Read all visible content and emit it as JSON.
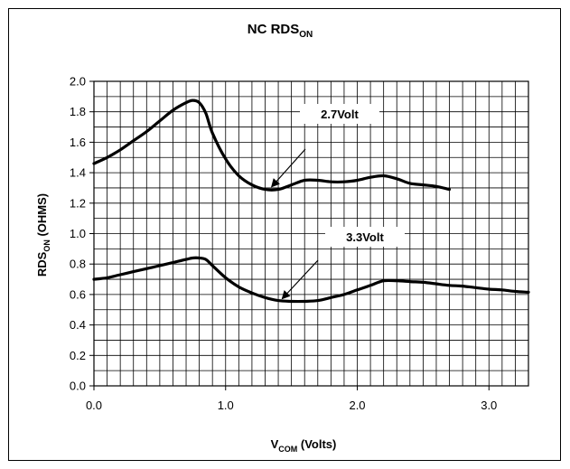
{
  "chart_data": {
    "type": "line",
    "title": {
      "main": "NC RDS",
      "sub": "ON"
    },
    "xlabel": {
      "main": "V",
      "sub": "COM",
      "suffix": " (Volts)"
    },
    "ylabel": {
      "main": "RDS",
      "sub": "ON",
      "suffix": " (OHMS)"
    },
    "xlim": [
      0,
      3.3
    ],
    "ylim": [
      0,
      2.0
    ],
    "x_ticks": [
      0.0,
      1.0,
      2.0,
      3.0
    ],
    "x_tick_labels": [
      "0.0",
      "1.0",
      "2.0",
      "3.0"
    ],
    "y_ticks": [
      0,
      0.2,
      0.4,
      0.6,
      0.8,
      1.0,
      1.2,
      1.4,
      1.6,
      1.8,
      2.0
    ],
    "y_tick_labels": [
      "0.0",
      "0.2",
      "0.4",
      "0.6",
      "0.8",
      "1.0",
      "1.2",
      "1.4",
      "1.6",
      "1.8",
      "2.0"
    ],
    "x_minor_step": 0.1,
    "y_minor_step": 0.1,
    "grid": true,
    "series": [
      {
        "x": [
          0.0,
          0.1,
          0.2,
          0.3,
          0.4,
          0.5,
          0.6,
          0.7,
          0.75,
          0.8,
          0.85,
          0.9,
          1.0,
          1.1,
          1.2,
          1.3,
          1.4,
          1.5,
          1.6,
          1.7,
          1.8,
          1.9,
          2.0,
          2.1,
          2.2,
          2.3,
          2.4,
          2.5,
          2.6,
          2.7
        ],
        "y": [
          1.46,
          1.5,
          1.55,
          1.61,
          1.67,
          1.74,
          1.81,
          1.86,
          1.875,
          1.86,
          1.79,
          1.66,
          1.49,
          1.38,
          1.32,
          1.29,
          1.29,
          1.32,
          1.35,
          1.35,
          1.34,
          1.34,
          1.35,
          1.37,
          1.38,
          1.36,
          1.33,
          1.32,
          1.31,
          1.29
        ],
        "color": "#000000"
      },
      {
        "x": [
          0.0,
          0.1,
          0.2,
          0.3,
          0.4,
          0.5,
          0.6,
          0.7,
          0.75,
          0.8,
          0.85,
          0.9,
          1.0,
          1.1,
          1.2,
          1.3,
          1.4,
          1.5,
          1.6,
          1.7,
          1.8,
          1.9,
          2.0,
          2.1,
          2.2,
          2.3,
          2.4,
          2.5,
          2.6,
          2.7,
          2.8,
          2.9,
          3.0,
          3.1,
          3.2,
          3.3
        ],
        "y": [
          0.7,
          0.71,
          0.73,
          0.75,
          0.77,
          0.79,
          0.81,
          0.83,
          0.84,
          0.84,
          0.83,
          0.79,
          0.71,
          0.65,
          0.61,
          0.58,
          0.56,
          0.555,
          0.555,
          0.56,
          0.58,
          0.6,
          0.63,
          0.66,
          0.69,
          0.69,
          0.685,
          0.68,
          0.67,
          0.66,
          0.655,
          0.645,
          0.635,
          0.63,
          0.62,
          0.615
        ],
        "color": "#000000"
      }
    ],
    "annotations": [
      {
        "text": "2.7Volt",
        "arrow_to": [
          1.35,
          1.29
        ]
      },
      {
        "text": "3.3Volt",
        "arrow_to": [
          1.43,
          0.555
        ]
      }
    ]
  }
}
